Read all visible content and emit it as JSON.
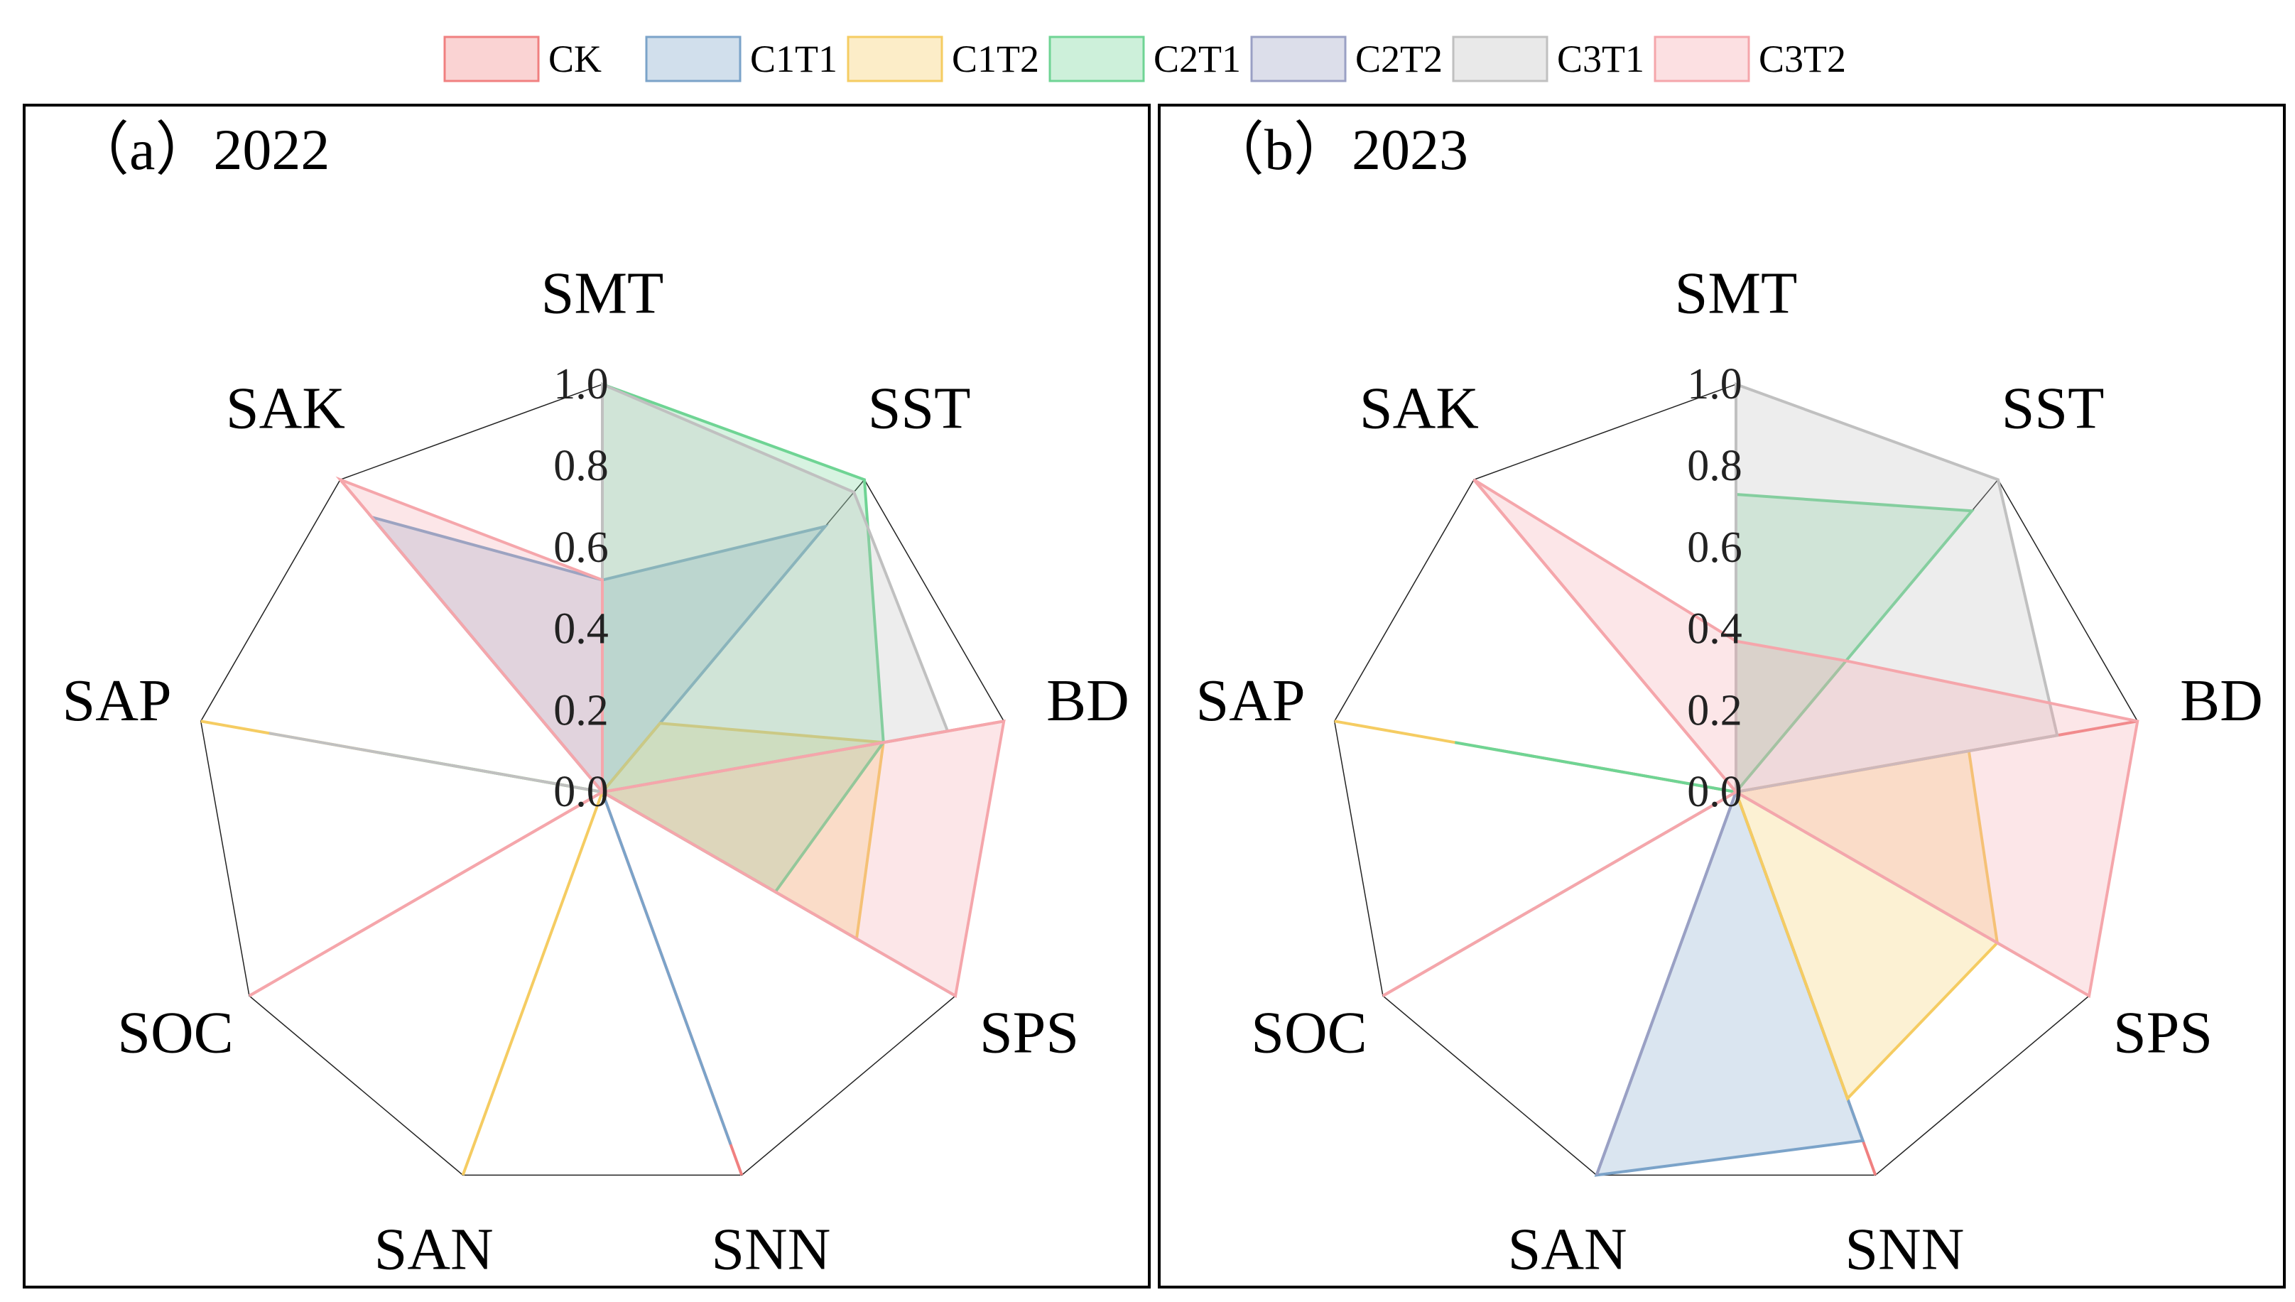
{
  "chart_data": {
    "type": "radar",
    "axes": [
      "SMT",
      "SST",
      "BD",
      "SPS",
      "SNN",
      "SAN",
      "SOC",
      "SAP",
      "SAK"
    ],
    "rlim": [
      0,
      1
    ],
    "ticks": [
      "0.0",
      "0.2",
      "0.4",
      "0.6",
      "0.8",
      "1.0"
    ],
    "legend": {
      "position": "top",
      "items": [
        {
          "name": "CK",
          "color": "#f08080"
        },
        {
          "name": "C1T1",
          "color": "#7ba3c9"
        },
        {
          "name": "C1T2",
          "color": "#f5cc62"
        },
        {
          "name": "C2T1",
          "color": "#6fd494"
        },
        {
          "name": "C2T2",
          "color": "#9aa0c4"
        },
        {
          "name": "C3T1",
          "color": "#c0c0c0"
        },
        {
          "name": "C3T2",
          "color": "#f5a6ab"
        }
      ]
    },
    "panels": [
      {
        "title": "（a）2022",
        "series": [
          {
            "name": "CK",
            "values": [
              0.0,
              0.0,
              1.0,
              0.0,
              1.0,
              0.0,
              1.0,
              0.0,
              1.0
            ]
          },
          {
            "name": "C1T1",
            "values": [
              0.52,
              0.85,
              0.0,
              0.0,
              0.92,
              0.0,
              0.0,
              0.0,
              0.88
            ]
          },
          {
            "name": "C1T2",
            "values": [
              0.0,
              0.22,
              0.7,
              0.72,
              0.0,
              1.0,
              0.0,
              1.0,
              0.0
            ]
          },
          {
            "name": "C2T1",
            "values": [
              1.0,
              1.0,
              0.7,
              0.49,
              0.0,
              0.0,
              0.0,
              0.56,
              0.0
            ]
          },
          {
            "name": "C2T2",
            "values": [
              0.0,
              0.0,
              0.0,
              1.0,
              0.0,
              0.0,
              0.0,
              0.0,
              0.0
            ]
          },
          {
            "name": "C3T1",
            "values": [
              1.0,
              0.96,
              0.86,
              0.0,
              0.0,
              0.0,
              0.0,
              0.83,
              0.0
            ]
          },
          {
            "name": "C3T2",
            "values": [
              0.52,
              0.0,
              1.0,
              1.0,
              0.0,
              0.0,
              1.0,
              0.0,
              1.0
            ]
          }
        ]
      },
      {
        "title": "（b）2023",
        "series": [
          {
            "name": "CK",
            "values": [
              0.0,
              0.0,
              1.0,
              0.0,
              1.0,
              0.0,
              1.0,
              0.0,
              1.0
            ]
          },
          {
            "name": "C1T1",
            "values": [
              0.0,
              0.0,
              0.0,
              0.0,
              0.91,
              1.0,
              0.0,
              0.6,
              0.0
            ]
          },
          {
            "name": "C1T2",
            "values": [
              0.0,
              0.0,
              0.58,
              0.74,
              0.8,
              0.0,
              0.0,
              1.0,
              0.0
            ]
          },
          {
            "name": "C2T1",
            "values": [
              0.73,
              0.9,
              0.0,
              0.0,
              0.0,
              0.0,
              0.0,
              0.7,
              0.0
            ]
          },
          {
            "name": "C2T2",
            "values": [
              0.38,
              0.0,
              0.0,
              0.84,
              0.0,
              1.0,
              0.0,
              0.0,
              0.0
            ]
          },
          {
            "name": "C3T1",
            "values": [
              1.0,
              1.0,
              0.8,
              0.0,
              0.0,
              0.0,
              0.88,
              0.0,
              0.0
            ]
          },
          {
            "name": "C3T2",
            "values": [
              0.37,
              0.42,
              1.0,
              1.0,
              0.0,
              0.0,
              1.0,
              0.0,
              1.0
            ]
          }
        ]
      }
    ]
  }
}
